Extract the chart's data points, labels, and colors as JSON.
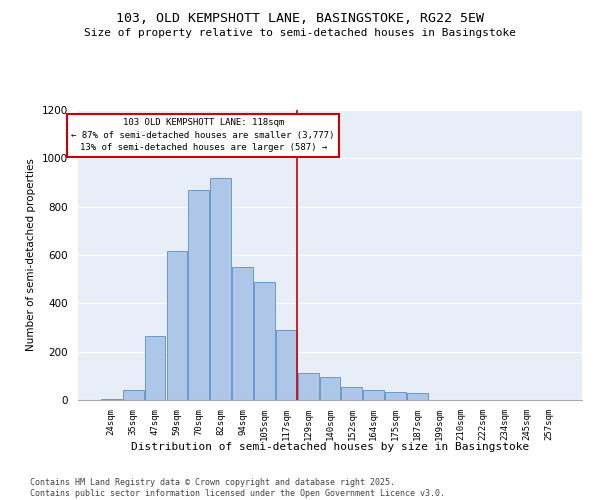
{
  "title1": "103, OLD KEMPSHOTT LANE, BASINGSTOKE, RG22 5EW",
  "title2": "Size of property relative to semi-detached houses in Basingstoke",
  "xlabel": "Distribution of semi-detached houses by size in Basingstoke",
  "ylabel": "Number of semi-detached properties",
  "footer1": "Contains HM Land Registry data © Crown copyright and database right 2025.",
  "footer2": "Contains public sector information licensed under the Open Government Licence v3.0.",
  "annotation_title": "103 OLD KEMPSHOTT LANE: 118sqm",
  "annotation_line1": "← 87% of semi-detached houses are smaller (3,777)",
  "annotation_line2": "13% of semi-detached houses are larger (587) →",
  "categories": [
    "24sqm",
    "35sqm",
    "47sqm",
    "59sqm",
    "70sqm",
    "82sqm",
    "94sqm",
    "105sqm",
    "117sqm",
    "129sqm",
    "140sqm",
    "152sqm",
    "164sqm",
    "175sqm",
    "187sqm",
    "199sqm",
    "210sqm",
    "222sqm",
    "234sqm",
    "245sqm",
    "257sqm"
  ],
  "bar_values": [
    5,
    40,
    265,
    615,
    870,
    920,
    550,
    490,
    290,
    110,
    95,
    55,
    40,
    35,
    30,
    2,
    2,
    0,
    0,
    0,
    2
  ],
  "bar_color": "#aec6e8",
  "bar_edge_color": "#5a8fc2",
  "vline_color": "#cc0000",
  "box_edge_color": "#cc0000",
  "background_color": "#e8eef8",
  "vline_x": 8.5,
  "ylim": [
    0,
    1200
  ],
  "yticks": [
    0,
    200,
    400,
    600,
    800,
    1000,
    1200
  ],
  "figwidth": 6.0,
  "figheight": 5.0,
  "dpi": 100
}
